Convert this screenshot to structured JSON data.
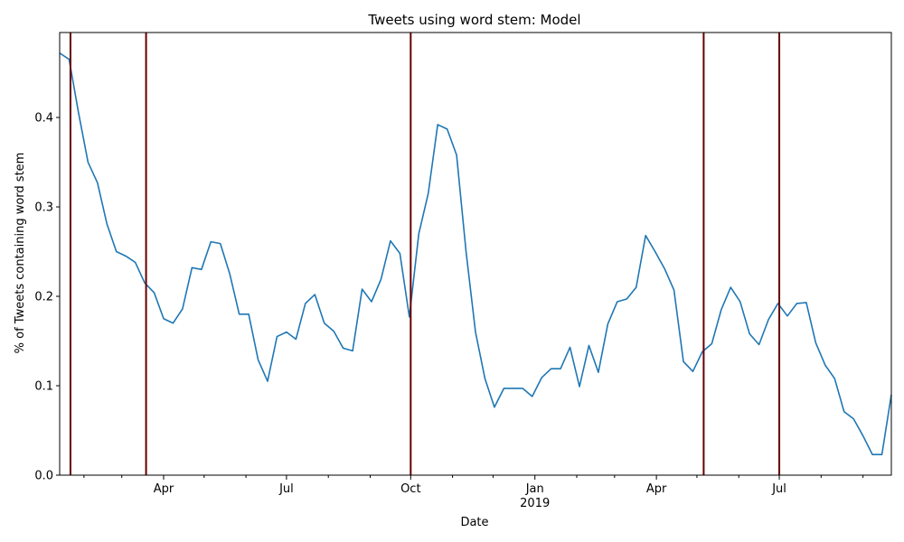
{
  "chart_data": {
    "type": "line",
    "title": "Tweets using word stem: Model",
    "xlabel": "Date",
    "ylabel": "% of Tweets containing word stem",
    "xlim": [
      "2018-01-14",
      "2019-09-22"
    ],
    "ylim": [
      0,
      0.495
    ],
    "yticks": [
      0.0,
      0.1,
      0.2,
      0.3,
      0.4
    ],
    "ytick_labels": [
      "0.0",
      "0.1",
      "0.2",
      "0.3",
      "0.4"
    ],
    "xticks": [
      {
        "date": "2018-04-01",
        "label": "Apr",
        "sublabel": ""
      },
      {
        "date": "2018-07-01",
        "label": "Jul",
        "sublabel": ""
      },
      {
        "date": "2018-10-01",
        "label": "Oct",
        "sublabel": ""
      },
      {
        "date": "2019-01-01",
        "label": "Jan",
        "sublabel": "2019"
      },
      {
        "date": "2019-04-01",
        "label": "Apr",
        "sublabel": ""
      },
      {
        "date": "2019-07-01",
        "label": "Jul",
        "sublabel": ""
      }
    ],
    "minor_xticks": [
      "2018-02-01",
      "2018-03-01",
      "2018-05-01",
      "2018-06-01",
      "2018-08-01",
      "2018-09-01",
      "2018-11-01",
      "2018-12-01",
      "2019-02-01",
      "2019-03-01",
      "2019-05-01",
      "2019-06-01",
      "2019-08-01",
      "2019-09-01"
    ],
    "vlines": [
      "2018-01-22",
      "2018-03-19",
      "2018-10-01",
      "2019-05-06",
      "2019-07-01"
    ],
    "vline_color": "#660000",
    "line_color": "#1f77b4",
    "grid": false,
    "series": [
      {
        "x": [
          "2018-01-14",
          "2018-01-21",
          "2018-01-28",
          "2018-02-04",
          "2018-02-11",
          "2018-02-18",
          "2018-02-25",
          "2018-03-04",
          "2018-03-11",
          "2018-03-18",
          "2018-03-25",
          "2018-04-01",
          "2018-04-08",
          "2018-04-15",
          "2018-04-22",
          "2018-04-29",
          "2018-05-06",
          "2018-05-13",
          "2018-05-20",
          "2018-05-27",
          "2018-06-03",
          "2018-06-10",
          "2018-06-17",
          "2018-06-24",
          "2018-07-01",
          "2018-07-08",
          "2018-07-15",
          "2018-07-22",
          "2018-07-29",
          "2018-08-05",
          "2018-08-12",
          "2018-08-19",
          "2018-08-26",
          "2018-09-02",
          "2018-09-09",
          "2018-09-16",
          "2018-09-23",
          "2018-09-30",
          "2018-10-07",
          "2018-10-14",
          "2018-10-21",
          "2018-10-28",
          "2018-11-04",
          "2018-11-11",
          "2018-11-18",
          "2018-11-25",
          "2018-12-02",
          "2018-12-09",
          "2018-12-16",
          "2018-12-23",
          "2018-12-30",
          "2019-01-06",
          "2019-01-13",
          "2019-01-20",
          "2019-01-27",
          "2019-02-03",
          "2019-02-10",
          "2019-02-17",
          "2019-02-24",
          "2019-03-03",
          "2019-03-10",
          "2019-03-17",
          "2019-03-24",
          "2019-03-31",
          "2019-04-07",
          "2019-04-14",
          "2019-04-21",
          "2019-04-28",
          "2019-05-05",
          "2019-05-12",
          "2019-05-19",
          "2019-05-26",
          "2019-06-02",
          "2019-06-09",
          "2019-06-16",
          "2019-06-23",
          "2019-06-30",
          "2019-07-07",
          "2019-07-14",
          "2019-07-21",
          "2019-07-28",
          "2019-08-04",
          "2019-08-11",
          "2019-08-18",
          "2019-08-25",
          "2019-09-01",
          "2019-09-08",
          "2019-09-15",
          "2019-09-22"
        ],
        "values": [
          0.472,
          0.465,
          0.405,
          0.35,
          0.327,
          0.281,
          0.25,
          0.245,
          0.238,
          0.215,
          0.204,
          0.175,
          0.17,
          0.186,
          0.232,
          0.23,
          0.261,
          0.259,
          0.225,
          0.18,
          0.18,
          0.129,
          0.105,
          0.155,
          0.16,
          0.152,
          0.192,
          0.202,
          0.17,
          0.161,
          0.142,
          0.139,
          0.208,
          0.194,
          0.219,
          0.262,
          0.248,
          0.177,
          0.27,
          0.315,
          0.392,
          0.387,
          0.358,
          0.25,
          0.16,
          0.108,
          0.076,
          0.097,
          0.097,
          0.097,
          0.088,
          0.109,
          0.119,
          0.119,
          0.143,
          0.099,
          0.145,
          0.115,
          0.169,
          0.194,
          0.197,
          0.21,
          0.268,
          0.25,
          0.231,
          0.207,
          0.127,
          0.116,
          0.138,
          0.147,
          0.185,
          0.21,
          0.194,
          0.158,
          0.146,
          0.174,
          0.192,
          0.178,
          0.192,
          0.193,
          0.148,
          0.123,
          0.108,
          0.071,
          0.063,
          0.044,
          0.023,
          0.023,
          0.09
        ]
      }
    ]
  }
}
